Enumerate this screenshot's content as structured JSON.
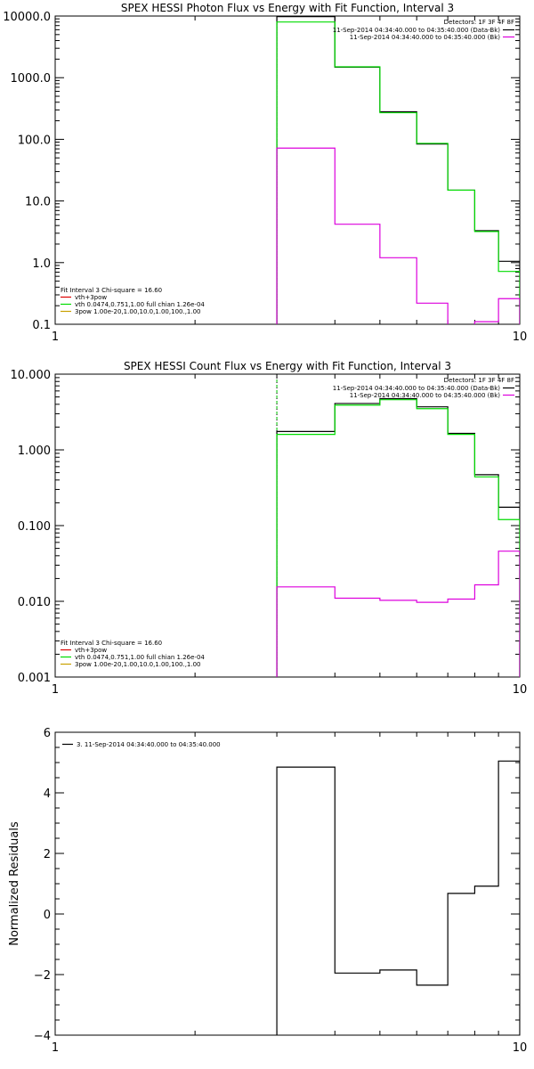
{
  "chart_data": [
    {
      "type": "line",
      "title": "SPEX HESSI Photon Flux vs Energy with Fit Function, Interval 3",
      "xlabel": "",
      "ylabel": "",
      "xscale": "log",
      "yscale": "log",
      "xlim": [
        1,
        10
      ],
      "ylim": [
        0.1,
        10000
      ],
      "x_tick_labels": [
        {
          "value": 1,
          "label": "1"
        },
        {
          "value": 10,
          "label": "10"
        }
      ],
      "y_tick_labels": [
        {
          "value": 0.1,
          "label": "0.1"
        },
        {
          "value": 1,
          "label": "1.0"
        },
        {
          "value": 10,
          "label": "10.0"
        },
        {
          "value": 100,
          "label": "100.0"
        },
        {
          "value": 1000,
          "label": "1000.0"
        },
        {
          "value": 10000,
          "label": "10000.0"
        }
      ],
      "vline": {
        "x": 3.0,
        "color": "#00c800"
      },
      "bin_edges": [
        3.0,
        4.0,
        5.0,
        6.0,
        7.0,
        8.0,
        9.0,
        10.0
      ],
      "series": [
        {
          "color": "#000000",
          "values": [
            9800,
            1480,
            280,
            84,
            15,
            3.3,
            1.05
          ]
        },
        {
          "color": "#00dc00",
          "values": [
            8000,
            1500,
            270,
            86,
            15,
            3.2,
            0.72
          ]
        },
        {
          "color": "#dd00dd",
          "values": [
            72,
            4.2,
            1.2,
            0.22,
            0.095,
            0.11,
            0.26
          ]
        }
      ],
      "legend_tr": {
        "detectors": "Detectors: 1F 3F 4F 8F",
        "lines": [
          {
            "text": "11-Sep-2014 04:34:40.000 to 04:35:40.000 (Data-Bk)",
            "color": "#000000"
          },
          {
            "text": "11-Sep-2014 04:34:40.000 to 04:35:40.000 (Bk)",
            "color": "#dd00dd"
          }
        ]
      },
      "legend_bl": {
        "header": "Fit Interval  3    Chi-square = 16.60",
        "lines": [
          {
            "text": "vth+3pow",
            "color": "#dd0000"
          },
          {
            "text": "vth 0.0474,0.751,1.00  full chian 1.26e-04",
            "color": "#00dc00"
          },
          {
            "text": "3pow 1.00e-20,1.00,10.0,1.00,100.,1.00",
            "color": "#c8a000"
          }
        ]
      }
    },
    {
      "type": "line",
      "title": "SPEX HESSI Count Flux vs Energy with Fit Function, Interval 3",
      "xlabel": "",
      "ylabel": "",
      "xscale": "log",
      "yscale": "log",
      "xlim": [
        1,
        10
      ],
      "ylim": [
        0.001,
        10
      ],
      "x_tick_labels": [
        {
          "value": 1,
          "label": "1"
        },
        {
          "value": 10,
          "label": "10"
        }
      ],
      "y_tick_labels": [
        {
          "value": 0.001,
          "label": "0.001"
        },
        {
          "value": 0.01,
          "label": "0.010"
        },
        {
          "value": 0.1,
          "label": "0.100"
        },
        {
          "value": 1,
          "label": "1.000"
        },
        {
          "value": 10,
          "label": "10.000"
        }
      ],
      "vline": {
        "x": 3.0,
        "color": "#00c800"
      },
      "bin_edges": [
        3.0,
        4.0,
        5.0,
        6.0,
        7.0,
        8.0,
        9.0,
        10.0
      ],
      "series": [
        {
          "color": "#000000",
          "values": [
            1.75,
            4.1,
            4.75,
            3.7,
            1.65,
            0.47,
            0.175
          ]
        },
        {
          "color": "#00dc00",
          "values": [
            1.6,
            3.9,
            4.6,
            3.5,
            1.6,
            0.44,
            0.12
          ]
        },
        {
          "color": "#dd00dd",
          "values": [
            0.0155,
            0.011,
            0.0103,
            0.0097,
            0.0107,
            0.0165,
            0.046
          ]
        }
      ],
      "legend_tr": {
        "detectors": "Detectors: 1F 3F 4F 8F",
        "lines": [
          {
            "text": "11-Sep-2014 04:34:40.000 to 04:35:40.000 (Data-Bk)",
            "color": "#000000"
          },
          {
            "text": "11-Sep-2014 04:34:40.000 to 04:35:40.000 (Bk)",
            "color": "#dd00dd"
          }
        ]
      },
      "legend_bl": {
        "header": "Fit Interval  3    Chi-square = 16.60",
        "lines": [
          {
            "text": "vth+3pow",
            "color": "#dd0000"
          },
          {
            "text": "vth 0.0474,0.751,1.00  full chian 1.26e-04",
            "color": "#00dc00"
          },
          {
            "text": "3pow 1.00e-20,1.00,10.0,1.00,100.,1.00",
            "color": "#c8a000"
          }
        ]
      }
    },
    {
      "type": "line",
      "title": "",
      "xlabel": "",
      "ylabel": "Normalized Residuals",
      "xscale": "log",
      "yscale": "linear",
      "xlim": [
        1,
        10
      ],
      "ylim": [
        -4,
        6
      ],
      "x_tick_labels": [
        {
          "value": 1,
          "label": "1"
        },
        {
          "value": 10,
          "label": "10"
        }
      ],
      "y_tick_labels": [
        {
          "value": -4,
          "label": "−4"
        },
        {
          "value": -2,
          "label": "−2"
        },
        {
          "value": 0,
          "label": "0"
        },
        {
          "value": 2,
          "label": "2"
        },
        {
          "value": 4,
          "label": "4"
        },
        {
          "value": 6,
          "label": "6"
        }
      ],
      "bin_edges": [
        3.0,
        4.0,
        5.0,
        6.0,
        7.0,
        8.0,
        9.0,
        10.0
      ],
      "series": [
        {
          "color": "#000000",
          "values": [
            4.85,
            -1.95,
            -1.85,
            -2.35,
            0.68,
            0.92,
            5.05
          ]
        }
      ],
      "legend_tl": {
        "lines": [
          {
            "text": "3. 11-Sep-2014 04:34:40.000 to 04:35:40.000",
            "color": "#000000"
          }
        ]
      }
    }
  ]
}
